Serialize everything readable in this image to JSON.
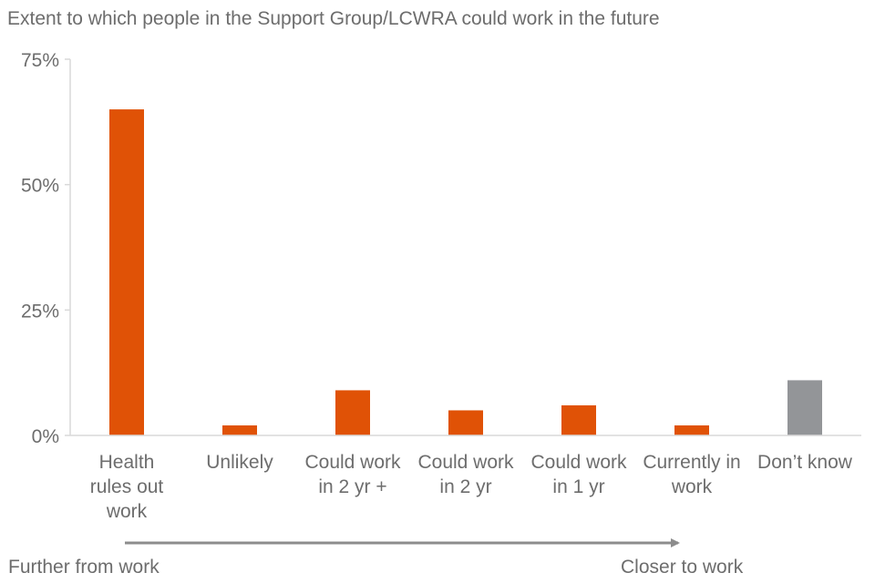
{
  "chart_data": {
    "type": "bar",
    "title": "Extent to which people in the Support Group/LCWRA could work in the future",
    "categories": [
      [
        "Health",
        "rules out",
        "work"
      ],
      [
        "Unlikely"
      ],
      [
        "Could work",
        "in 2 yr +"
      ],
      [
        "Could work",
        "in 2 yr"
      ],
      [
        "Could work",
        "in 1 yr"
      ],
      [
        "Currently in",
        "work"
      ],
      [
        "Don’t know"
      ]
    ],
    "values": [
      65,
      2,
      9,
      5,
      6,
      2,
      11
    ],
    "bar_colors": [
      "#e05206",
      "#e05206",
      "#e05206",
      "#e05206",
      "#e05206",
      "#e05206",
      "#939598"
    ],
    "ylim": [
      0,
      75
    ],
    "yticks": [
      0,
      25,
      50,
      75
    ],
    "ytick_labels": [
      "0%",
      "25%",
      "50%",
      "75%"
    ],
    "xlabel": "",
    "ylabel": "",
    "grid": false,
    "axis_color": "#d9d9d9",
    "direction": {
      "left_label": "Further from work",
      "right_label": "Closer to work",
      "arrow_color": "#8c8c8c"
    }
  }
}
